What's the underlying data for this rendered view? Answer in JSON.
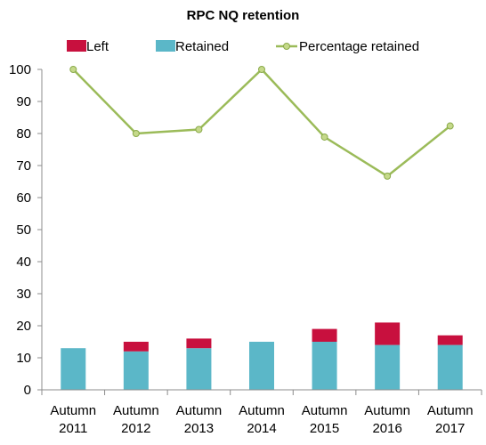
{
  "chart_data": {
    "type": "bar",
    "title": "RPC NQ retention",
    "categories": [
      [
        "Autumn",
        "2011"
      ],
      [
        "Autumn",
        "2012"
      ],
      [
        "Autumn",
        "2013"
      ],
      [
        "Autumn",
        "2014"
      ],
      [
        "Autumn",
        "2015"
      ],
      [
        "Autumn",
        "2016"
      ],
      [
        "Autumn",
        "2017"
      ]
    ],
    "series": [
      {
        "name": "Retained",
        "kind": "stacked-bar",
        "color": "#5bb7c8",
        "values": [
          13,
          12,
          13,
          15,
          15,
          14,
          14
        ]
      },
      {
        "name": "Left",
        "kind": "stacked-bar",
        "color": "#c8103e",
        "values": [
          0,
          3,
          3,
          0,
          4,
          7,
          3
        ]
      },
      {
        "name": "Percentage retained",
        "kind": "line",
        "color": "#9bbb59",
        "values": [
          100,
          80,
          81.25,
          100,
          78.9,
          66.7,
          82.35
        ]
      }
    ],
    "legend_order": [
      "Left",
      "Retained",
      "Percentage retained"
    ],
    "legend_position": "top",
    "ylim": [
      0,
      100
    ],
    "yticks": [
      0,
      10,
      20,
      30,
      40,
      50,
      60,
      70,
      80,
      90,
      100
    ],
    "grid": false,
    "xlabel": "",
    "ylabel": ""
  }
}
